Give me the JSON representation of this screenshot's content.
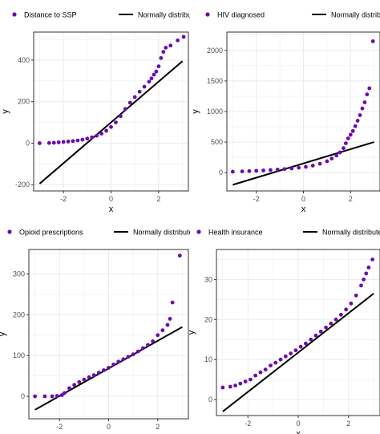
{
  "colors": {
    "point": "#6a0dad",
    "line": "#000000",
    "grid": "#ebebeb",
    "frame": "#333333",
    "tick_text": "#4d4d4d"
  },
  "chart_data": [
    {
      "type": "scatter",
      "panel": "top-left",
      "xlabel": "x",
      "ylabel": "y",
      "xlim": [
        -3.25,
        3.25
      ],
      "ylim": [
        -230,
        535
      ],
      "xticks": [
        -2,
        0,
        2
      ],
      "yticks": [
        -200,
        0,
        200,
        400
      ],
      "grid": true,
      "legend_position": "top",
      "series": [
        {
          "name": "Distance to SSP",
          "kind": "points",
          "points": [
            [
              -3.0,
              0
            ],
            [
              -2.6,
              1
            ],
            [
              -2.4,
              2
            ],
            [
              -2.2,
              4
            ],
            [
              -2.0,
              6
            ],
            [
              -1.8,
              8
            ],
            [
              -1.6,
              10
            ],
            [
              -1.4,
              13
            ],
            [
              -1.2,
              17
            ],
            [
              -1.0,
              22
            ],
            [
              -0.8,
              28
            ],
            [
              -0.6,
              36
            ],
            [
              -0.4,
              46
            ],
            [
              -0.2,
              60
            ],
            [
              0.0,
              78
            ],
            [
              0.2,
              100
            ],
            [
              0.4,
              130
            ],
            [
              0.6,
              165
            ],
            [
              0.8,
              195
            ],
            [
              1.0,
              222
            ],
            [
              1.2,
              248
            ],
            [
              1.4,
              272
            ],
            [
              1.6,
              296
            ],
            [
              1.7,
              312
            ],
            [
              1.8,
              330
            ],
            [
              1.9,
              345
            ],
            [
              2.0,
              370
            ],
            [
              2.1,
              410
            ],
            [
              2.2,
              440
            ],
            [
              2.3,
              460
            ],
            [
              2.5,
              470
            ],
            [
              2.8,
              495
            ],
            [
              3.05,
              512
            ]
          ]
        },
        {
          "name": "Normally distributed",
          "kind": "line",
          "points": [
            [
              -3.0,
              -195
            ],
            [
              3.0,
              395
            ]
          ]
        }
      ]
    },
    {
      "type": "scatter",
      "panel": "top-right",
      "xlabel": "x",
      "ylabel": "y",
      "xlim": [
        -3.25,
        3.25
      ],
      "ylim": [
        -300,
        2300
      ],
      "xticks": [
        -2,
        0,
        2
      ],
      "yticks": [
        0,
        500,
        1000,
        1500,
        2000
      ],
      "grid": true,
      "legend_position": "top",
      "series": [
        {
          "name": "HIV diagnosed",
          "kind": "points",
          "points": [
            [
              -3.0,
              15
            ],
            [
              -2.6,
              20
            ],
            [
              -2.3,
              25
            ],
            [
              -2.0,
              30
            ],
            [
              -1.7,
              35
            ],
            [
              -1.4,
              42
            ],
            [
              -1.1,
              50
            ],
            [
              -0.8,
              58
            ],
            [
              -0.5,
              68
            ],
            [
              -0.2,
              80
            ],
            [
              0.1,
              95
            ],
            [
              0.4,
              115
            ],
            [
              0.7,
              145
            ],
            [
              1.0,
              185
            ],
            [
              1.2,
              230
            ],
            [
              1.4,
              280
            ],
            [
              1.55,
              330
            ],
            [
              1.7,
              400
            ],
            [
              1.8,
              480
            ],
            [
              1.9,
              560
            ],
            [
              2.0,
              620
            ],
            [
              2.1,
              680
            ],
            [
              2.2,
              760
            ],
            [
              2.3,
              850
            ],
            [
              2.4,
              940
            ],
            [
              2.5,
              1050
            ],
            [
              2.6,
              1150
            ],
            [
              2.7,
              1280
            ],
            [
              2.8,
              1380
            ],
            [
              2.95,
              2150
            ]
          ]
        },
        {
          "name": "Normally distributed",
          "kind": "line",
          "points": [
            [
              -3.0,
              -200
            ],
            [
              3.0,
              500
            ]
          ]
        }
      ]
    },
    {
      "type": "scatter",
      "panel": "bottom-left",
      "xlabel": "x",
      "ylabel": "y",
      "xlim": [
        -3.25,
        3.25
      ],
      "ylim": [
        -55,
        360
      ],
      "xticks": [
        -2,
        0,
        2
      ],
      "yticks": [
        0,
        100,
        200,
        300
      ],
      "grid": true,
      "legend_position": "top",
      "series": [
        {
          "name": "Opioid prescriptions",
          "kind": "points",
          "points": [
            [
              -3.0,
              0
            ],
            [
              -2.6,
              0
            ],
            [
              -2.3,
              0
            ],
            [
              -2.1,
              1
            ],
            [
              -1.9,
              3
            ],
            [
              -1.8,
              8
            ],
            [
              -1.6,
              20
            ],
            [
              -1.4,
              28
            ],
            [
              -1.2,
              35
            ],
            [
              -1.0,
              41
            ],
            [
              -0.8,
              47
            ],
            [
              -0.6,
              52
            ],
            [
              -0.4,
              58
            ],
            [
              -0.2,
              64
            ],
            [
              0.0,
              70
            ],
            [
              0.2,
              78
            ],
            [
              0.4,
              85
            ],
            [
              0.6,
              91
            ],
            [
              0.8,
              97
            ],
            [
              1.0,
              103
            ],
            [
              1.2,
              110
            ],
            [
              1.4,
              118
            ],
            [
              1.6,
              126
            ],
            [
              1.8,
              135
            ],
            [
              2.0,
              150
            ],
            [
              2.2,
              162
            ],
            [
              2.4,
              175
            ],
            [
              2.5,
              190
            ],
            [
              2.6,
              230
            ],
            [
              2.9,
              345
            ]
          ]
        },
        {
          "name": "Normally distributed",
          "kind": "line",
          "points": [
            [
              -3.0,
              -33
            ],
            [
              3.0,
              170
            ]
          ]
        }
      ]
    },
    {
      "type": "scatter",
      "panel": "bottom-right",
      "xlabel": "x",
      "ylabel": "y",
      "xlim": [
        -3.25,
        3.25
      ],
      "ylim": [
        -4,
        37.5
      ],
      "xticks": [
        -2,
        0,
        2
      ],
      "yticks": [
        0,
        10,
        20,
        30
      ],
      "grid": true,
      "legend_position": "top",
      "series": [
        {
          "name": "Health insurance",
          "kind": "points",
          "points": [
            [
              -3.0,
              3
            ],
            [
              -2.7,
              3.2
            ],
            [
              -2.5,
              3.5
            ],
            [
              -2.3,
              4
            ],
            [
              -2.1,
              4.5
            ],
            [
              -1.9,
              5
            ],
            [
              -1.7,
              6
            ],
            [
              -1.5,
              6.8
            ],
            [
              -1.3,
              7.5
            ],
            [
              -1.1,
              8.5
            ],
            [
              -0.9,
              9.2
            ],
            [
              -0.7,
              10
            ],
            [
              -0.5,
              10.8
            ],
            [
              -0.3,
              11.5
            ],
            [
              -0.1,
              12.3
            ],
            [
              0.1,
              13.2
            ],
            [
              0.3,
              14
            ],
            [
              0.5,
              15
            ],
            [
              0.7,
              16
            ],
            [
              0.9,
              17
            ],
            [
              1.1,
              18
            ],
            [
              1.3,
              19
            ],
            [
              1.5,
              20
            ],
            [
              1.7,
              21.2
            ],
            [
              1.9,
              22.5
            ],
            [
              2.1,
              24
            ],
            [
              2.3,
              26
            ],
            [
              2.5,
              28.5
            ],
            [
              2.6,
              30
            ],
            [
              2.7,
              31.5
            ],
            [
              2.8,
              33
            ],
            [
              2.95,
              35
            ]
          ]
        },
        {
          "name": "Normally distributed",
          "kind": "line",
          "points": [
            [
              -3.0,
              -3
            ],
            [
              3.0,
              26.5
            ]
          ]
        }
      ]
    }
  ]
}
